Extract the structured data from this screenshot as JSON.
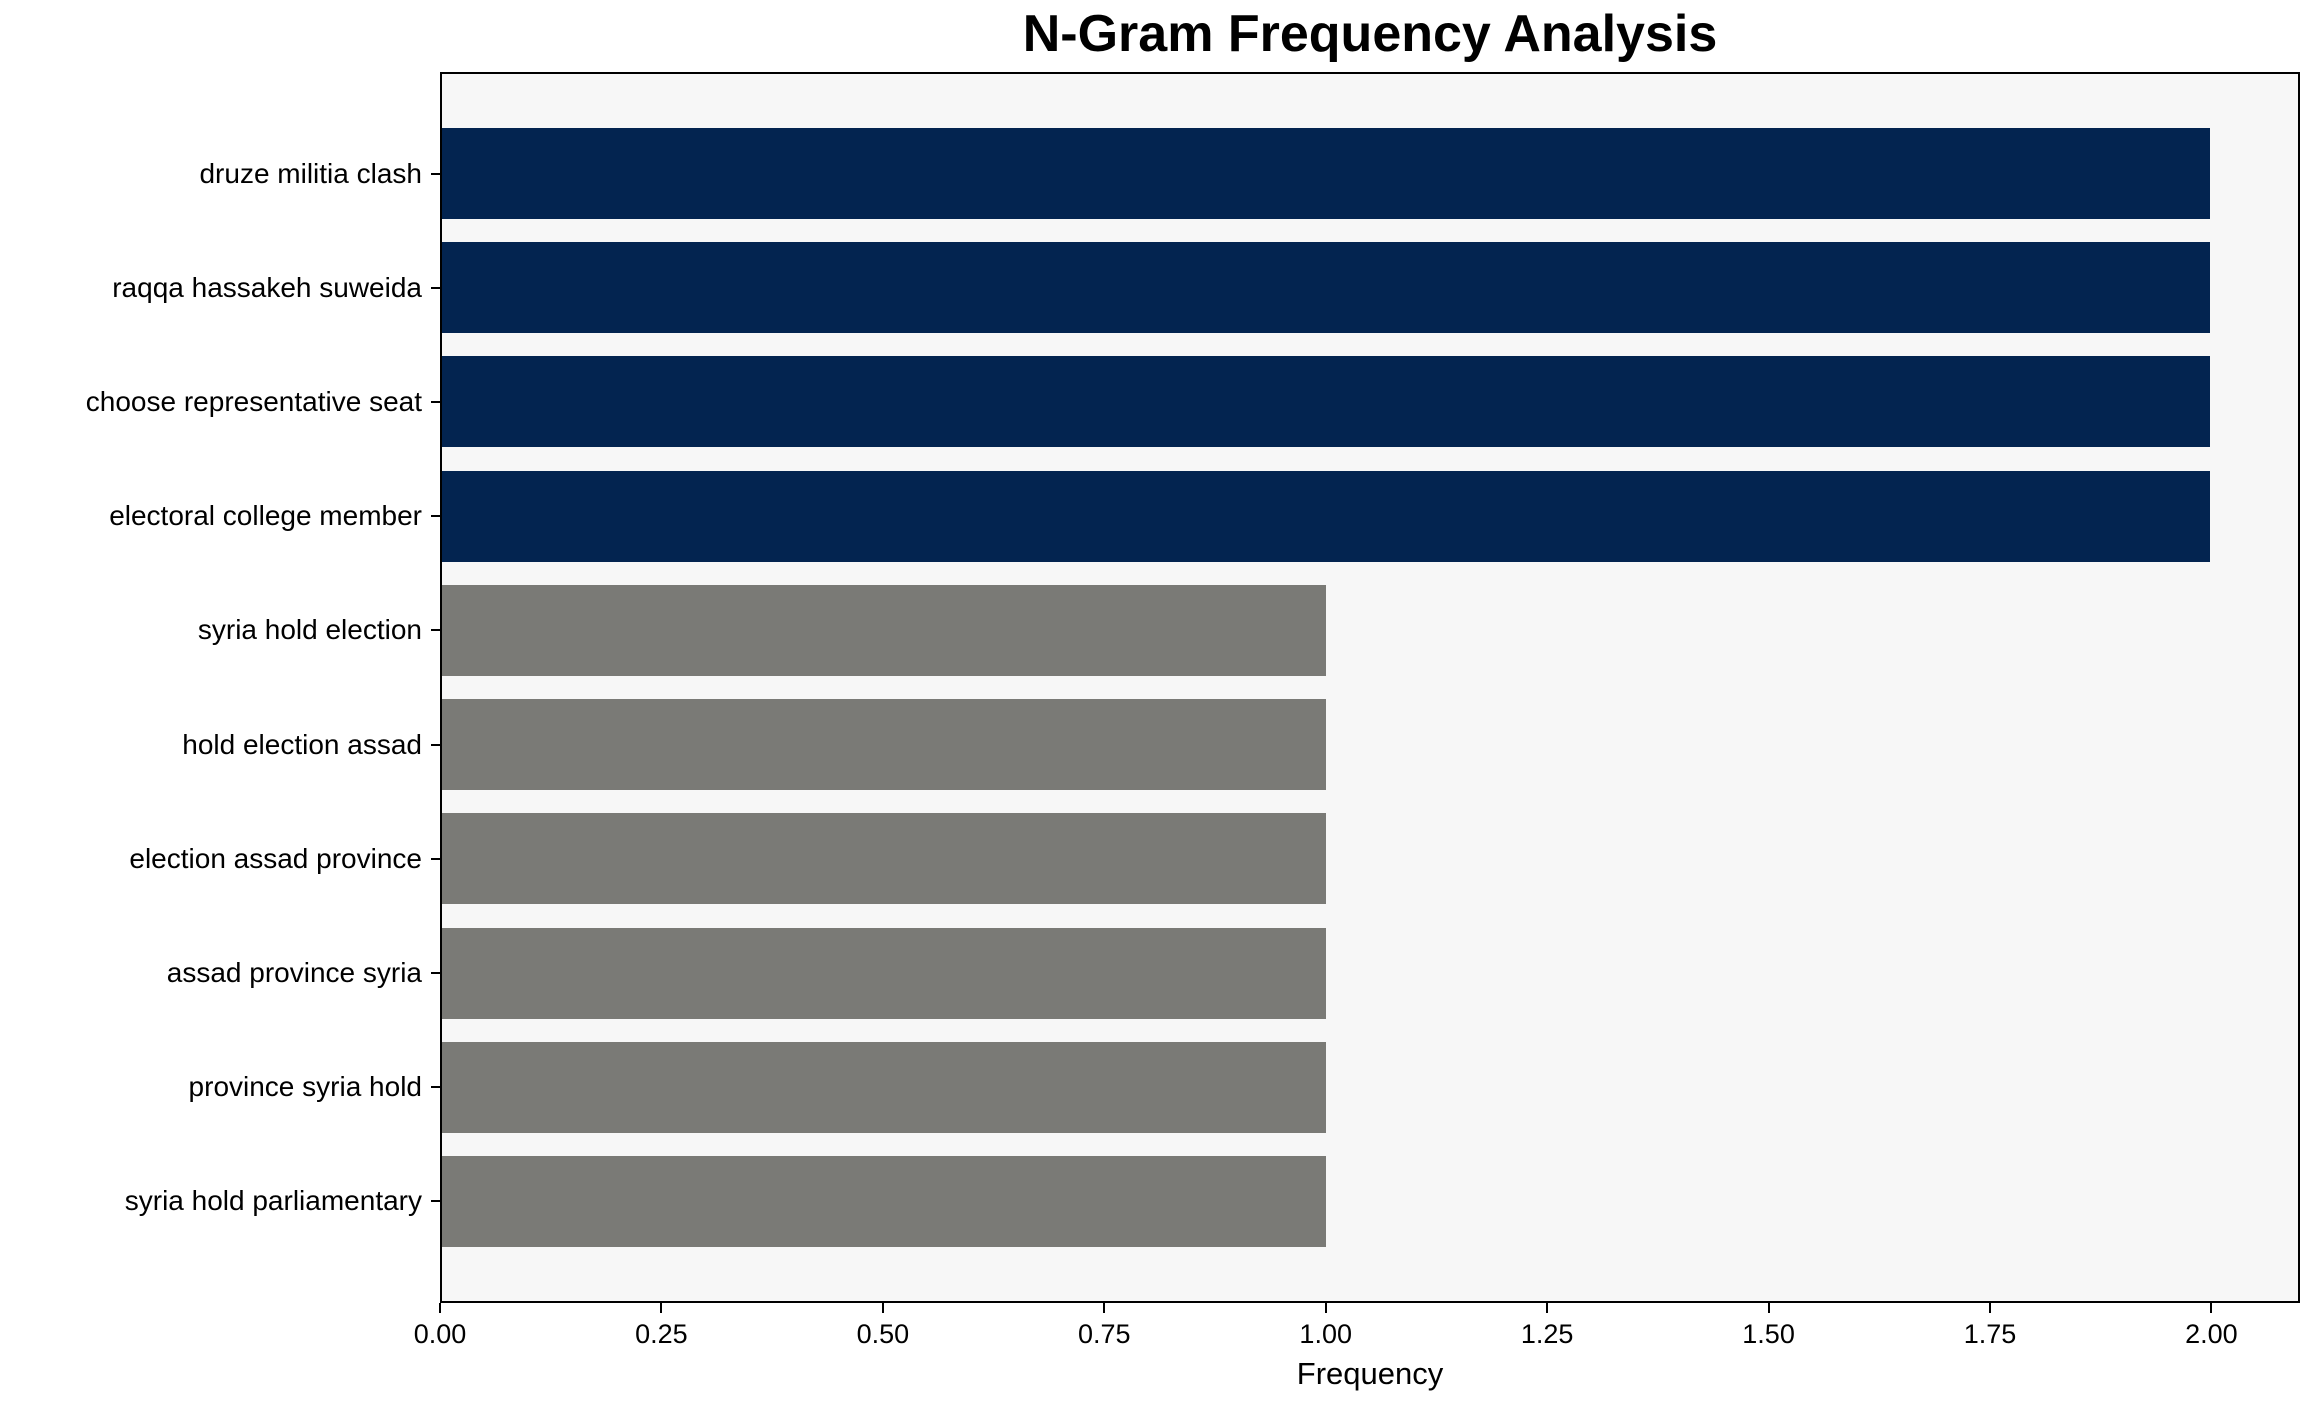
{
  "title": "N-Gram Frequency Analysis",
  "colors": {
    "figure_bg": "#ffffff",
    "plot_bg": "#f7f7f7",
    "axis": "#000000",
    "text": "#000000",
    "bar_high": "#032450",
    "bar_low": "#7a7a76"
  },
  "chart_data": {
    "type": "bar",
    "orientation": "horizontal",
    "title": "N-Gram Frequency Analysis",
    "xlabel": "Frequency",
    "ylabel": "",
    "grid": false,
    "legend": null,
    "xlim": [
      0,
      2.1
    ],
    "xticks": [
      0,
      0.25,
      0.5,
      0.75,
      1.0,
      1.25,
      1.5,
      1.75,
      2.0
    ],
    "xtick_labels": [
      "0.00",
      "0.25",
      "0.50",
      "0.75",
      "1.00",
      "1.25",
      "1.50",
      "1.75",
      "2.00"
    ],
    "categories": [
      "druze militia clash",
      "raqqa hassakeh suweida",
      "choose representative seat",
      "electoral college member",
      "syria hold election",
      "hold election assad",
      "election assad province",
      "assad province syria",
      "province syria hold",
      "syria hold parliamentary"
    ],
    "values": [
      2,
      2,
      2,
      2,
      1,
      1,
      1,
      1,
      1,
      1
    ],
    "bar_colors": [
      "#032450",
      "#032450",
      "#032450",
      "#032450",
      "#7a7a76",
      "#7a7a76",
      "#7a7a76",
      "#7a7a76",
      "#7a7a76",
      "#7a7a76"
    ]
  }
}
